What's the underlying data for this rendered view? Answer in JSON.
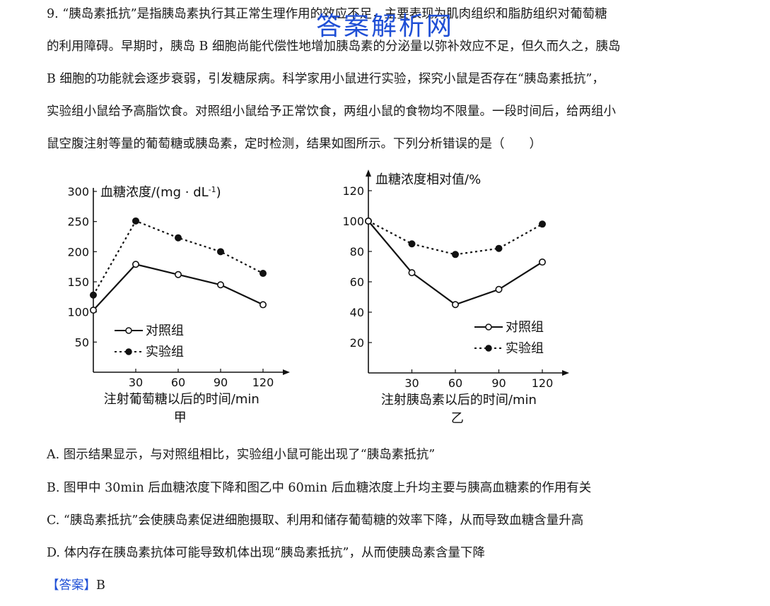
{
  "question": {
    "lines": [
      "9. “胰岛素抵抗”是指胰岛素执行其正常生理作用的效应不足，主要表现为肌肉组织和脂肪组织对葡萄糖",
      "的利用障碍。早期时，胰岛 B 细胞尚能代偿性地增加胰岛素的分泌量以弥补效应不足，但久而久之，胰岛",
      "B 细胞的功能就会逐步衰弱，引发糖尿病。科学家用小鼠进行实验，探究小鼠是否存在“胰岛素抵抗”，",
      "实验组小鼠给予高脂饮食。对照组小鼠给予正常饮食，两组小鼠的食物均不限量。一段时间后，给两组小",
      "鼠空腹注射等量的葡萄糖或胰岛素，定时检测，结果如图所示。下列分析错误的是（　　）"
    ]
  },
  "watermark": "答案解析网",
  "chart_data": [
    {
      "type": "line",
      "panel_label": "甲",
      "ylabel": "血糖浓度/(mg · dL",
      "ylabel_sup": "-1",
      "ylabel_close": ")",
      "xlabel": "注射葡萄糖以后的时间/min",
      "ylim": [
        0,
        300
      ],
      "yticks": [
        50,
        100,
        150,
        200,
        250,
        300
      ],
      "xticks": [
        30,
        60,
        90,
        120
      ],
      "series": [
        {
          "name": "对照组",
          "marker": "open",
          "line": "solid",
          "x": [
            0,
            30,
            60,
            90,
            120
          ],
          "y": [
            103,
            179,
            162,
            145,
            112
          ]
        },
        {
          "name": "实验组",
          "marker": "filled",
          "line": "dotted",
          "x": [
            0,
            30,
            60,
            90,
            120
          ],
          "y": [
            128,
            251,
            223,
            200,
            164
          ]
        }
      ]
    },
    {
      "type": "line",
      "panel_label": "乙",
      "ylabel": "血糖浓度相对值/%",
      "xlabel": "注射胰岛素以后的时间/min",
      "ylim": [
        0,
        120
      ],
      "yticks": [
        20,
        40,
        60,
        80,
        100,
        120
      ],
      "xticks": [
        30,
        60,
        90,
        120
      ],
      "series": [
        {
          "name": "对照组",
          "marker": "open",
          "line": "solid",
          "x": [
            0,
            30,
            60,
            90,
            120
          ],
          "y": [
            100,
            66,
            45,
            55,
            73
          ]
        },
        {
          "name": "实验组",
          "marker": "filled",
          "line": "dotted",
          "x": [
            0,
            30,
            60,
            90,
            120
          ],
          "y": [
            100,
            85,
            78,
            82,
            98
          ]
        }
      ]
    }
  ],
  "options": [
    {
      "letter": "A.",
      "text": "图示结果显示，与对照组相比，实验组小鼠可能出现了“胰岛素抵抗”"
    },
    {
      "letter": "B.",
      "text": "图甲中 30min 后血糖浓度下降和图乙中 60min 后血糖浓度上升均主要与胰高血糖素的作用有关"
    },
    {
      "letter": "C.",
      "text": "“胰岛素抵抗”会使胰岛素促进细胞摄取、利用和储存葡萄糖的效率下降，从而导致血糖含量升高"
    },
    {
      "letter": "D.",
      "text": "体内存在胰岛素抗体可能导致机体出现“胰岛素抵抗”，从而使胰岛素含量下降"
    }
  ],
  "answer": {
    "tag": "【答案】",
    "value": "B"
  }
}
